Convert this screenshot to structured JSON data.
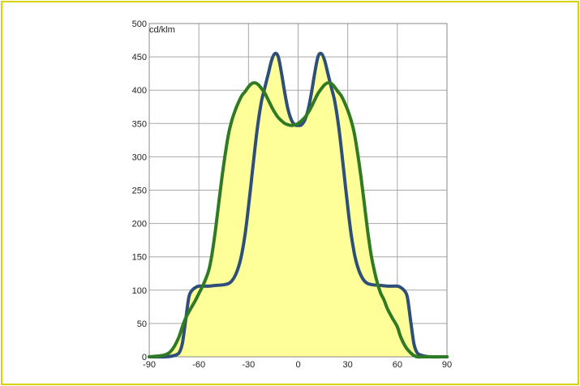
{
  "chart_data": {
    "type": "line",
    "unit_label": "cd/klm",
    "xlim": [
      -90,
      90
    ],
    "ylim": [
      0,
      500
    ],
    "x_ticks": [
      -90,
      -60,
      -30,
      0,
      30,
      60,
      90
    ],
    "y_ticks": [
      0,
      50,
      100,
      150,
      200,
      250,
      300,
      350,
      400,
      450,
      500
    ],
    "grid": true,
    "colors": {
      "fill": "#ffff99",
      "grid": "#a8a8a8",
      "series_blue": "#2e4f7a",
      "series_green": "#2f7a22",
      "frame": "#d9d400"
    },
    "series": [
      {
        "color": "#2e4f7a",
        "x": [
          -90,
          -80,
          -75,
          -72,
          -70,
          -68,
          -66,
          -64,
          -62,
          -60,
          -55,
          -50,
          -45,
          -42,
          -40,
          -38,
          -36,
          -34,
          -32,
          -30,
          -28,
          -26,
          -24,
          -22,
          -20,
          -18,
          -16,
          -14,
          -12,
          -10,
          -8,
          -6,
          -4,
          -2,
          0,
          2,
          4,
          6,
          8,
          10,
          12,
          14,
          16,
          18,
          20,
          22,
          24,
          26,
          28,
          30,
          32,
          34,
          36,
          38,
          40,
          42,
          45,
          50,
          55,
          60,
          62,
          64,
          66,
          68,
          70,
          72,
          75,
          80,
          90
        ],
        "y": [
          0,
          0,
          2,
          6,
          20,
          55,
          90,
          100,
          104,
          106,
          106,
          107,
          108,
          110,
          114,
          122,
          135,
          155,
          185,
          225,
          270,
          315,
          355,
          385,
          405,
          425,
          445,
          455,
          450,
          425,
          395,
          370,
          355,
          348,
          347,
          348,
          355,
          370,
          395,
          425,
          450,
          455,
          445,
          425,
          405,
          385,
          355,
          315,
          270,
          225,
          185,
          155,
          135,
          122,
          114,
          110,
          108,
          107,
          106,
          106,
          104,
          100,
          90,
          55,
          20,
          6,
          2,
          0,
          0
        ]
      },
      {
        "color": "#2f7a22",
        "x": [
          -90,
          -82,
          -78,
          -75,
          -72,
          -70,
          -68,
          -65,
          -62,
          -60,
          -57,
          -54,
          -52,
          -50,
          -48,
          -46,
          -44,
          -42,
          -40,
          -38,
          -36,
          -34,
          -32,
          -30,
          -28,
          -26,
          -24,
          -22,
          -20,
          -18,
          -16,
          -14,
          -12,
          -10,
          -8,
          -6,
          -4,
          -2,
          0,
          2,
          4,
          6,
          8,
          10,
          12,
          14,
          16,
          18,
          20,
          22,
          24,
          26,
          28,
          30,
          32,
          34,
          36,
          38,
          40,
          42,
          44,
          46,
          48,
          50,
          52,
          54,
          57,
          60,
          62,
          65,
          68,
          70,
          72,
          75,
          78,
          82,
          90
        ],
        "y": [
          0,
          2,
          6,
          15,
          30,
          45,
          58,
          72,
          85,
          95,
          110,
          130,
          155,
          190,
          230,
          270,
          305,
          335,
          355,
          370,
          382,
          392,
          398,
          405,
          410,
          411,
          408,
          402,
          395,
          385,
          375,
          366,
          359,
          354,
          350,
          348,
          347,
          348,
          350,
          354,
          359,
          366,
          375,
          385,
          395,
          402,
          408,
          411,
          410,
          405,
          398,
          392,
          382,
          370,
          355,
          335,
          305,
          270,
          230,
          190,
          155,
          130,
          110,
          95,
          85,
          72,
          58,
          45,
          30,
          15,
          6,
          2,
          0,
          0,
          0,
          0,
          0
        ]
      }
    ]
  }
}
